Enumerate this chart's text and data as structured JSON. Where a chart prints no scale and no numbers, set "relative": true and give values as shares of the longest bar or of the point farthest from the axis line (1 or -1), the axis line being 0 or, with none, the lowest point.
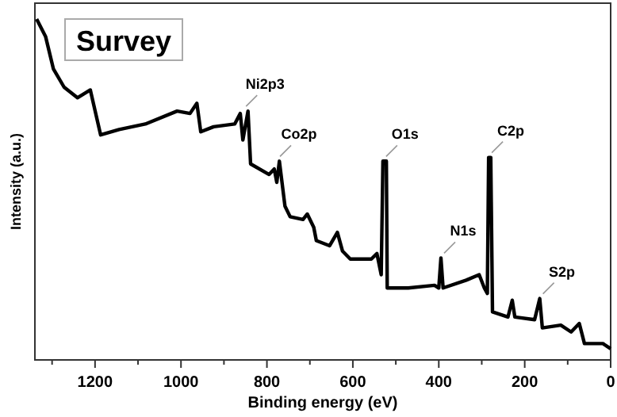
{
  "chart_data": {
    "type": "line",
    "title": "Survey",
    "xlabel": "Binding energy (eV)",
    "ylabel": "Intensity (a.u.)",
    "relative": true,
    "grid": false,
    "marker": "none",
    "line_style": "solid",
    "xlim": [
      1340,
      0
    ],
    "xticks": [
      {
        "value": 1300,
        "label": null
      },
      1200,
      {
        "value": 1100,
        "label": null
      },
      1000,
      {
        "value": 900,
        "label": null
      },
      800,
      {
        "value": 700,
        "label": null
      },
      600,
      {
        "value": 500,
        "label": null
      },
      400,
      {
        "value": 300,
        "label": null
      },
      200,
      {
        "value": 100,
        "label": null
      },
      0
    ],
    "annotations": [
      {
        "text": "Ni2p3",
        "x": 856,
        "y": 0.73
      },
      {
        "text": "Co2p",
        "x": 777,
        "y": 0.583
      },
      {
        "text": "O1s",
        "x": 530,
        "y": 0.583
      },
      {
        "text": "N1s",
        "x": 395,
        "y": 0.299
      },
      {
        "text": "C2p",
        "x": 284,
        "y": 0.594
      },
      {
        "text": "S2p",
        "x": 165,
        "y": 0.18
      }
    ],
    "series": [
      {
        "color": "#000000",
        "x": [
          1336,
          1315,
          1297,
          1272,
          1241,
          1211,
          1187,
          1144,
          1083,
          1009,
          979,
          963,
          954,
          924,
          875,
          862,
          856,
          844,
          838,
          795,
          783,
          777,
          771,
          758,
          746,
          716,
          706,
          691,
          685,
          654,
          636,
          624,
          606,
          557,
          544,
          534,
          530,
          522,
          520,
          471,
          410,
          400,
          395,
          390,
          336,
          306,
          294,
          287,
          284,
          279,
          275,
          239,
          229,
          223,
          177,
          165,
          159,
          116,
          92,
          73,
          61,
          18,
          0
        ],
        "values": [
          1.0,
          0.948,
          0.854,
          0.8,
          0.769,
          0.792,
          0.66,
          0.676,
          0.692,
          0.73,
          0.723,
          0.753,
          0.669,
          0.684,
          0.692,
          0.723,
          0.645,
          0.73,
          0.575,
          0.544,
          0.56,
          0.521,
          0.583,
          0.451,
          0.42,
          0.412,
          0.428,
          0.389,
          0.35,
          0.335,
          0.374,
          0.319,
          0.296,
          0.296,
          0.312,
          0.25,
          0.583,
          0.583,
          0.211,
          0.211,
          0.219,
          0.211,
          0.299,
          0.211,
          0.234,
          0.25,
          0.211,
          0.195,
          0.594,
          0.594,
          0.141,
          0.126,
          0.175,
          0.126,
          0.118,
          0.18,
          0.094,
          0.102,
          0.082,
          0.107,
          0.048,
          0.048,
          0.033
        ]
      }
    ]
  }
}
